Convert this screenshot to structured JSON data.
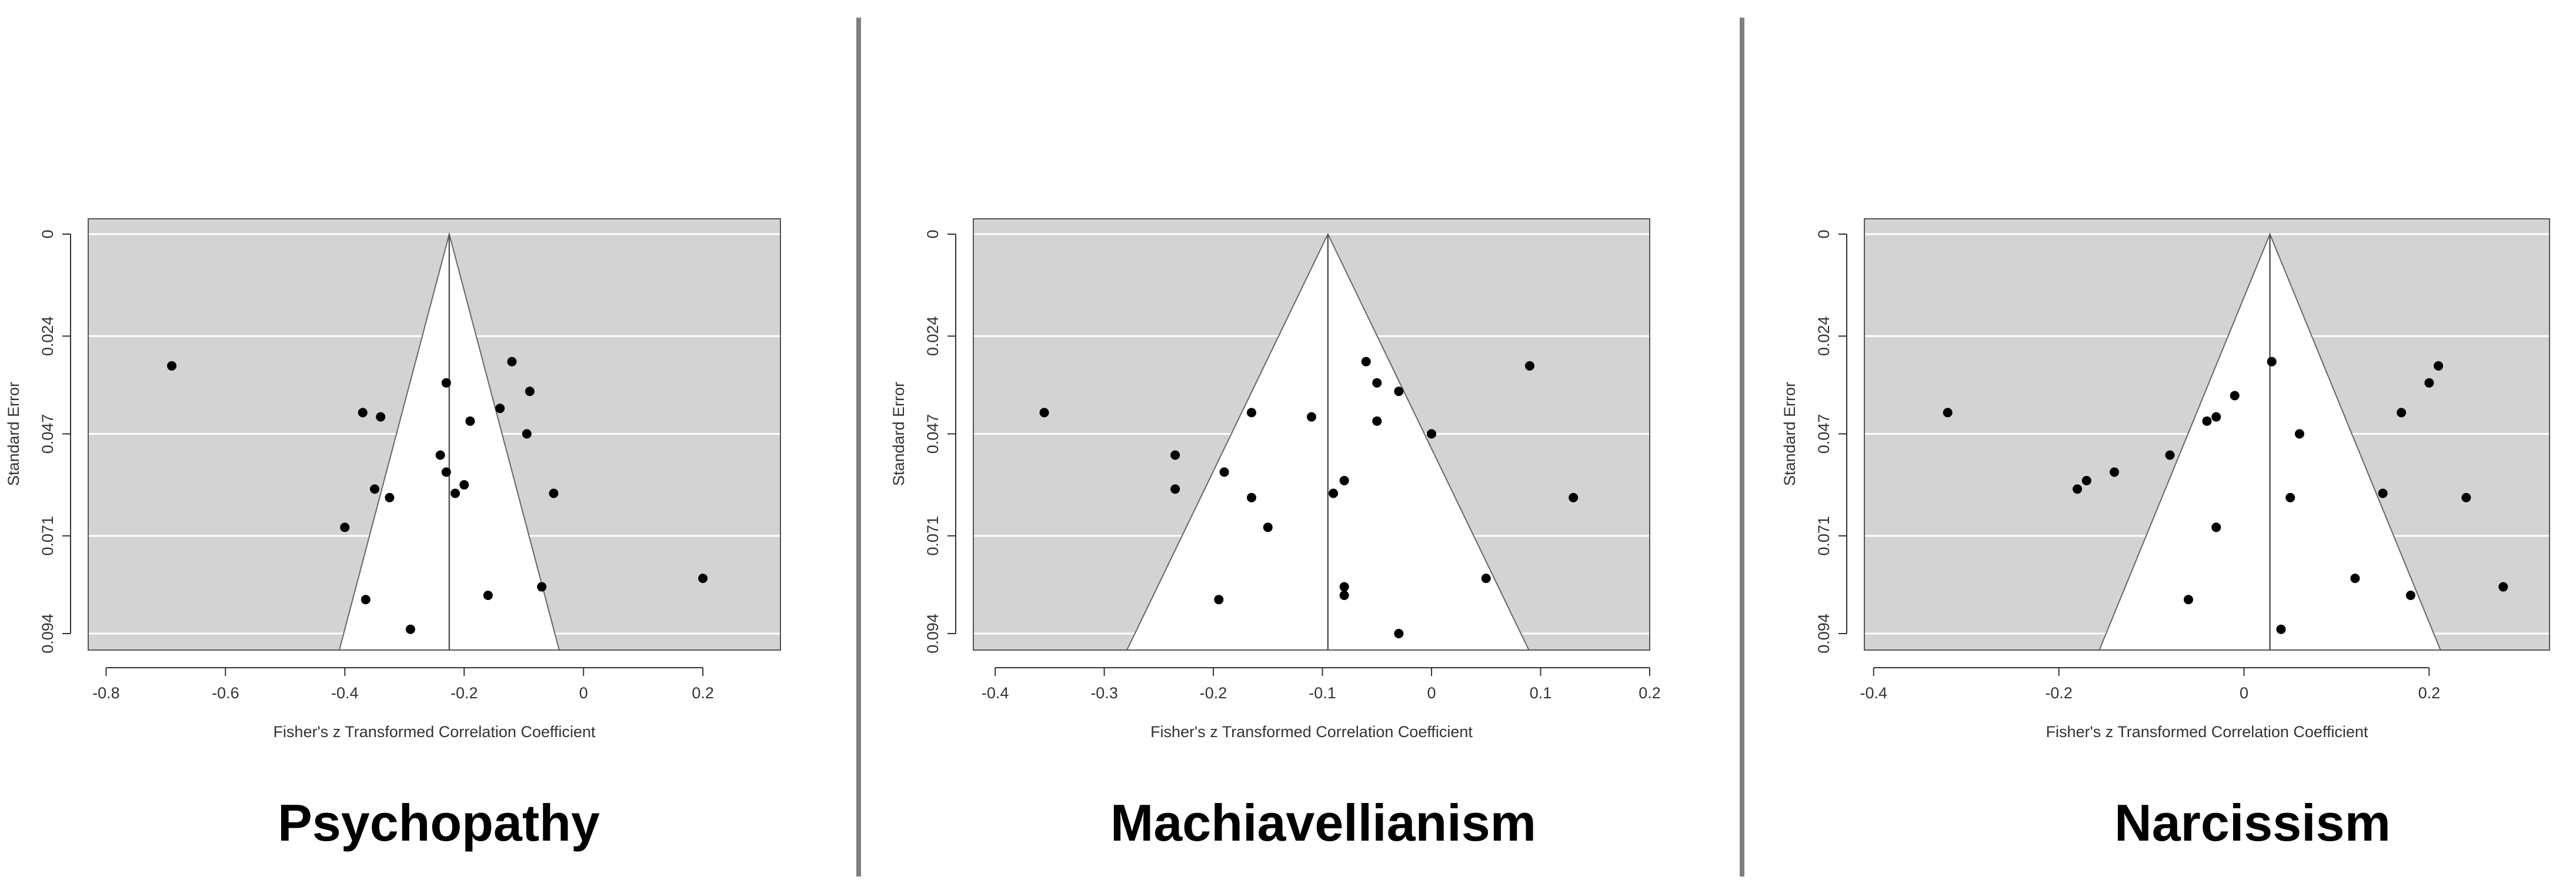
{
  "colors": {
    "funnel_outside": "#d3d3d3",
    "funnel_inside": "#ffffff",
    "gridline": "#ffffff",
    "point": "#000000",
    "divider": "#7f7f7f"
  },
  "chart_data": [
    {
      "type": "scatter",
      "subtype": "funnel-plot",
      "title": "Psychopathy",
      "xlabel": "Fisher's z Transformed Correlation Coefficient",
      "ylabel": "Standard Error",
      "xlim": [
        -0.83,
        0.33
      ],
      "ylim": [
        0,
        0.094
      ],
      "y_reversed": true,
      "xticks": [
        -0.8,
        -0.6,
        -0.4,
        -0.2,
        0,
        0.2
      ],
      "xtick_labels": [
        "-0.8",
        "-0.6",
        "-0.4",
        "-0.2",
        "0",
        "0.2"
      ],
      "yticks": [
        0,
        0.024,
        0.047,
        0.071,
        0.094
      ],
      "ytick_labels": [
        "0",
        "0.024",
        "0.047",
        "0.071",
        "0.094"
      ],
      "grid_y": true,
      "center": -0.225,
      "funnel_max_se": 0.094,
      "points": [
        {
          "x": -0.69,
          "y": 0.031
        },
        {
          "x": -0.12,
          "y": 0.03
        },
        {
          "x": -0.23,
          "y": 0.035
        },
        {
          "x": -0.09,
          "y": 0.037
        },
        {
          "x": -0.37,
          "y": 0.042
        },
        {
          "x": -0.14,
          "y": 0.041
        },
        {
          "x": -0.34,
          "y": 0.043
        },
        {
          "x": -0.19,
          "y": 0.044
        },
        {
          "x": -0.095,
          "y": 0.047
        },
        {
          "x": -0.24,
          "y": 0.052
        },
        {
          "x": -0.23,
          "y": 0.056
        },
        {
          "x": -0.2,
          "y": 0.059
        },
        {
          "x": -0.35,
          "y": 0.06
        },
        {
          "x": -0.215,
          "y": 0.061
        },
        {
          "x": -0.325,
          "y": 0.062
        },
        {
          "x": -0.05,
          "y": 0.061
        },
        {
          "x": -0.4,
          "y": 0.069
        },
        {
          "x": 0.2,
          "y": 0.081
        },
        {
          "x": -0.07,
          "y": 0.083
        },
        {
          "x": -0.16,
          "y": 0.085
        },
        {
          "x": -0.365,
          "y": 0.086
        },
        {
          "x": -0.29,
          "y": 0.093
        }
      ]
    },
    {
      "type": "scatter",
      "subtype": "funnel-plot",
      "title": "Machiavellianism",
      "xlabel": "Fisher's z Transformed Correlation Coefficient",
      "ylabel": "Standard Error",
      "xlim": [
        -0.42,
        0.2
      ],
      "ylim": [
        0,
        0.094
      ],
      "y_reversed": true,
      "xticks": [
        -0.4,
        -0.3,
        -0.2,
        -0.1,
        0,
        0.1,
        0.2
      ],
      "xtick_labels": [
        "-0.4",
        "-0.3",
        "-0.2",
        "-0.1",
        "0",
        "0.1",
        "0.2"
      ],
      "yticks": [
        0,
        0.024,
        0.047,
        0.071,
        0.094
      ],
      "ytick_labels": [
        "0",
        "0.024",
        "0.047",
        "0.071",
        "0.094"
      ],
      "grid_y": true,
      "center": -0.095,
      "funnel_max_se": 0.094,
      "points": [
        {
          "x": -0.355,
          "y": 0.042
        },
        {
          "x": -0.06,
          "y": 0.03
        },
        {
          "x": 0.09,
          "y": 0.031
        },
        {
          "x": -0.05,
          "y": 0.035
        },
        {
          "x": -0.03,
          "y": 0.037
        },
        {
          "x": -0.165,
          "y": 0.042
        },
        {
          "x": -0.11,
          "y": 0.043
        },
        {
          "x": -0.05,
          "y": 0.044
        },
        {
          "x": 0.0,
          "y": 0.047
        },
        {
          "x": -0.235,
          "y": 0.052
        },
        {
          "x": -0.19,
          "y": 0.056
        },
        {
          "x": -0.235,
          "y": 0.06
        },
        {
          "x": -0.08,
          "y": 0.058
        },
        {
          "x": -0.09,
          "y": 0.061
        },
        {
          "x": -0.165,
          "y": 0.062
        },
        {
          "x": 0.13,
          "y": 0.062
        },
        {
          "x": -0.15,
          "y": 0.069
        },
        {
          "x": 0.05,
          "y": 0.081
        },
        {
          "x": -0.08,
          "y": 0.083
        },
        {
          "x": -0.08,
          "y": 0.085
        },
        {
          "x": -0.195,
          "y": 0.086
        },
        {
          "x": -0.03,
          "y": 0.094
        }
      ]
    },
    {
      "type": "scatter",
      "subtype": "funnel-plot",
      "title": "Narcissism",
      "xlabel": "Fisher's z Transformed Correlation Coefficient",
      "ylabel": "Standard Error",
      "xlim": [
        -0.41,
        0.33
      ],
      "ylim": [
        0,
        0.094
      ],
      "y_reversed": true,
      "xticks": [
        -0.4,
        -0.2,
        0,
        0.2
      ],
      "xtick_labels": [
        "-0.4",
        "-0.2",
        "0",
        "0.2"
      ],
      "yticks": [
        0,
        0.024,
        0.047,
        0.071,
        0.094
      ],
      "ytick_labels": [
        "0",
        "0.024",
        "0.047",
        "0.071",
        "0.094"
      ],
      "grid_y": true,
      "center": 0.028,
      "funnel_max_se": 0.094,
      "points": [
        {
          "x": -0.32,
          "y": 0.042
        },
        {
          "x": 0.03,
          "y": 0.03
        },
        {
          "x": 0.21,
          "y": 0.031
        },
        {
          "x": 0.2,
          "y": 0.035
        },
        {
          "x": -0.01,
          "y": 0.038
        },
        {
          "x": 0.17,
          "y": 0.042
        },
        {
          "x": -0.04,
          "y": 0.044
        },
        {
          "x": -0.03,
          "y": 0.043
        },
        {
          "x": 0.06,
          "y": 0.047
        },
        {
          "x": -0.08,
          "y": 0.052
        },
        {
          "x": -0.14,
          "y": 0.056
        },
        {
          "x": -0.17,
          "y": 0.058
        },
        {
          "x": -0.18,
          "y": 0.06
        },
        {
          "x": 0.15,
          "y": 0.061
        },
        {
          "x": 0.05,
          "y": 0.062
        },
        {
          "x": 0.24,
          "y": 0.062
        },
        {
          "x": -0.03,
          "y": 0.069
        },
        {
          "x": 0.12,
          "y": 0.081
        },
        {
          "x": 0.28,
          "y": 0.083
        },
        {
          "x": 0.18,
          "y": 0.085
        },
        {
          "x": -0.06,
          "y": 0.086
        },
        {
          "x": 0.04,
          "y": 0.093
        }
      ]
    }
  ]
}
